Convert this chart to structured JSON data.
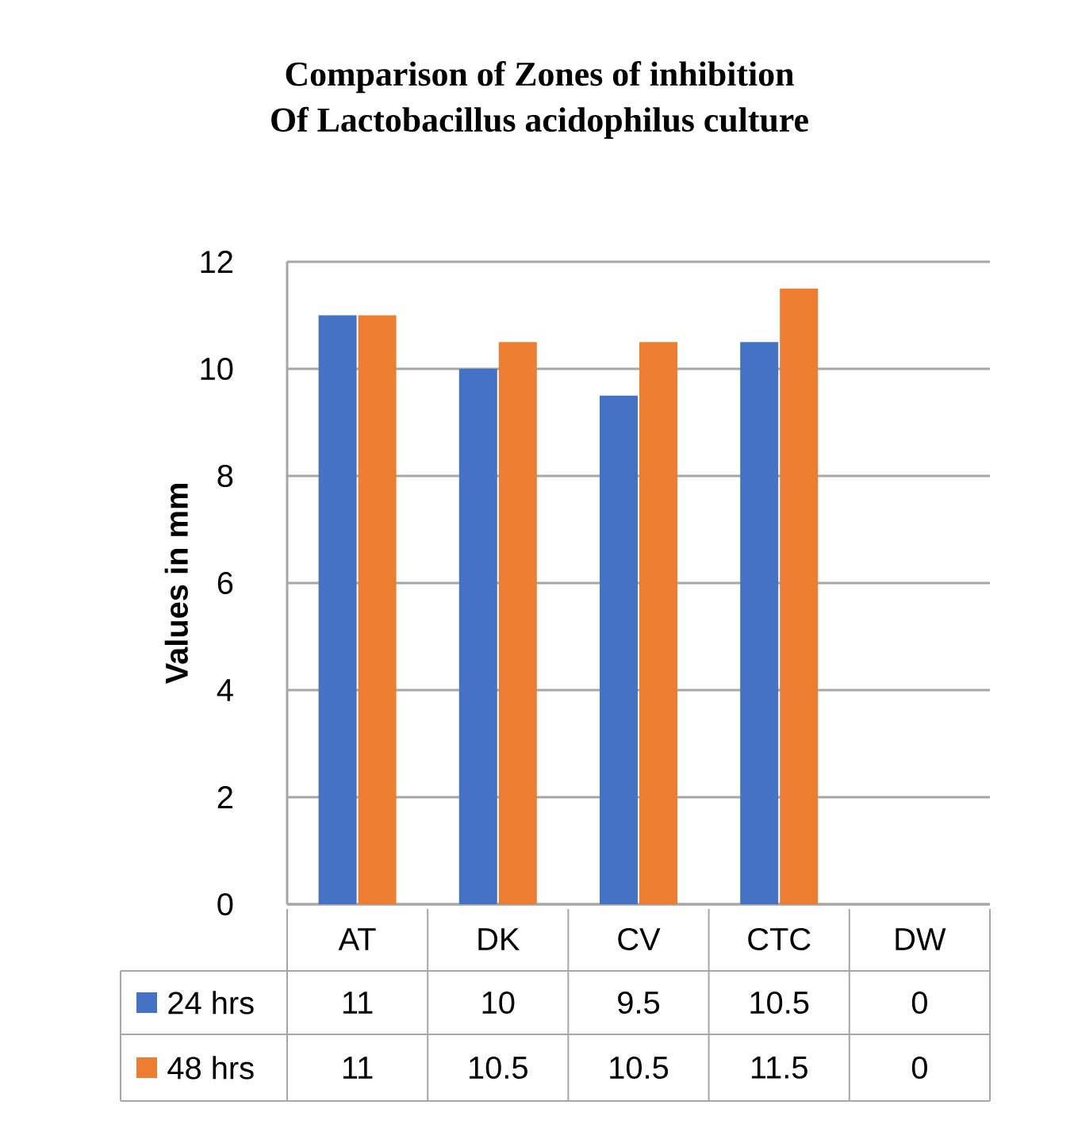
{
  "chart_data": {
    "type": "bar",
    "title": "Comparison of Zones of inhibition\nOf Lactobacillus acidophilus culture",
    "ylabel": "Values in mm",
    "categories": [
      "AT",
      "DK",
      "CV",
      "CTC",
      "DW"
    ],
    "series": [
      {
        "name": "24 hrs",
        "color": "#4472c4",
        "values": [
          11,
          10,
          9.5,
          10.5,
          0
        ],
        "value_labels": [
          "11",
          "10",
          "9.5",
          "10.5",
          "0"
        ]
      },
      {
        "name": "48 hrs",
        "color": "#ed7d31",
        "values": [
          11,
          10.5,
          10.5,
          11.5,
          0
        ],
        "value_labels": [
          "11",
          "10.5",
          "10.5",
          "11.5",
          "0"
        ]
      }
    ],
    "ylim": [
      0,
      12
    ],
    "yticks": [
      0,
      2,
      4,
      6,
      8,
      10,
      12
    ],
    "grid": "y",
    "legend": "bottom"
  }
}
